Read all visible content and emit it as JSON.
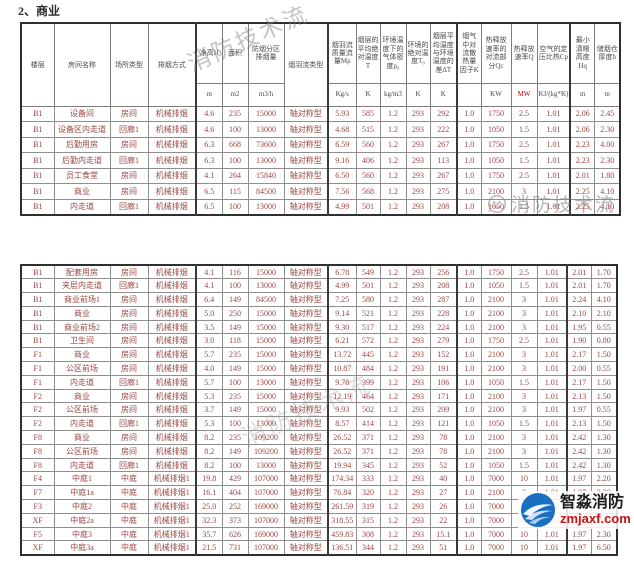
{
  "title": "2、商业",
  "colors": {
    "data_text": "#9a4742",
    "header_text": "#4a4a4a",
    "mw_unit_red": "#c00000",
    "logo_blue": "#1b6fc2",
    "logo_red": "#cc1111",
    "table_border": "#2f2f2f"
  },
  "watermarks": {
    "text": "消防技术流",
    "logo_name": "智淼消防",
    "logo_url": "zmjaxf.com"
  },
  "table": {
    "columns": [
      {
        "label": "楼层",
        "unit": null
      },
      {
        "label": "房间名称",
        "unit": null
      },
      {
        "label": "场所类型",
        "unit": null
      },
      {
        "label": "排烟方式",
        "unit": null
      },
      {
        "label": "净高H",
        "unit": "m"
      },
      {
        "label": "面积",
        "unit": "m2"
      },
      {
        "label": "防烟分区排烟量",
        "unit": "m3/h"
      },
      {
        "label": "烟羽流类型",
        "unit": null
      },
      {
        "label": "烟羽流质量流量Mρ",
        "unit": "Kg/s"
      },
      {
        "label": "烟层的平均绝对温度T",
        "unit": "K"
      },
      {
        "label": "环境温度下的气体密度ρ₀",
        "unit": "kg/m3"
      },
      {
        "label": "环境的绝对温度T₀",
        "unit": "K"
      },
      {
        "label": "烟层平均温度与环境温度的差ΔT",
        "unit": "K"
      },
      {
        "label": "烟气中对流散热量因子K",
        "unit": ""
      },
      {
        "label": "热释放速率的对流部分Qc",
        "unit": "KW"
      },
      {
        "label": "热释放速率Q",
        "unit": "MW"
      },
      {
        "label": "空气的定压比热Cp",
        "unit": "KJ/(kg*K)"
      },
      {
        "label": "最小清晰高度Hq",
        "unit": "m"
      },
      {
        "label": "储烟仓厚度h",
        "unit": "m"
      }
    ],
    "sections": {
      "top": [
        [
          "B1",
          "设备间",
          "房间",
          "机械排烟",
          "4.6",
          "235",
          "15000",
          "轴对称型",
          "5.93",
          "585",
          "1.2",
          "293",
          "292",
          "1.0",
          "1750",
          "2.5",
          "1.01",
          "2.06",
          "2.45"
        ],
        [
          "B1",
          "设备区内走道",
          "回廊1",
          "机械排烟",
          "4.6",
          "100",
          "13000",
          "轴对称型",
          "4.68",
          "515",
          "1.2",
          "293",
          "222",
          "1.0",
          "1050",
          "1.5",
          "1.01",
          "2.06",
          "2.30"
        ],
        [
          "B1",
          "后勤用房",
          "房间",
          "机械排烟",
          "6.3",
          "668",
          "73600",
          "轴对称型",
          "6.59",
          "560",
          "1.2",
          "293",
          "267",
          "1.0",
          "1750",
          "2.5",
          "1.01",
          "2.23",
          "4.00"
        ],
        [
          "B1",
          "后勤内走道",
          "回廊1",
          "机械排烟",
          "6.3",
          "100",
          "13000",
          "轴对称型",
          "9.16",
          "406",
          "1.2",
          "293",
          "113",
          "1.0",
          "1050",
          "1.5",
          "1.01",
          "2.23",
          "2.30"
        ],
        [
          "B1",
          "员工食堂",
          "房间",
          "机械排烟",
          "4.1",
          "264",
          "15840",
          "轴对称型",
          "6.50",
          "560",
          "1.2",
          "293",
          "267",
          "1.0",
          "1750",
          "2.5",
          "1.01",
          "2.01",
          "1.80"
        ],
        [
          "B1",
          "商业",
          "房间",
          "机械排烟",
          "6.5",
          "115",
          "84500",
          "轴对称型",
          "7.56",
          "568",
          "1.2",
          "293",
          "275",
          "1.0",
          "2100",
          "3",
          "1.01",
          "2.25",
          "4.10"
        ],
        [
          "B1",
          "内走道",
          "回廊1",
          "机械排烟",
          "6.5",
          "100",
          "13000",
          "轴对称型",
          "4.99",
          "501",
          "1.2",
          "293",
          "208",
          "1.0",
          "1050",
          "1.5",
          "1.01",
          "2.25",
          "4.10"
        ]
      ],
      "bottom": [
        [
          "B1",
          "配套用房",
          "房间",
          "机械排烟",
          "4.1",
          "116",
          "15000",
          "轴对称型",
          "6.78",
          "549",
          "1.2",
          "293",
          "256",
          "1.0",
          "1750",
          "2.5",
          "1.01",
          "2.01",
          "1.70"
        ],
        [
          "B1",
          "夹层内走道",
          "回廊1",
          "机械排烟",
          "4.1",
          "100",
          "13000",
          "轴对称型",
          "4.99",
          "501",
          "1.2",
          "293",
          "208",
          "1.0",
          "1050",
          "1.5",
          "1.01",
          "2.01",
          "1.70"
        ],
        [
          "B1",
          "商业前场1",
          "房间",
          "机械排烟",
          "6.4",
          "149",
          "84500",
          "轴对称型",
          "7.25",
          "580",
          "1.2",
          "293",
          "287",
          "1.0",
          "2100",
          "3",
          "1.01",
          "2.24",
          "4.10"
        ],
        [
          "B1",
          "商业",
          "房间",
          "机械排烟",
          "5.0",
          "250",
          "15000",
          "轴对称型",
          "9.14",
          "521",
          "1.2",
          "293",
          "228",
          "1.0",
          "2100",
          "3",
          "1.01",
          "2.10",
          "2.10"
        ],
        [
          "B1",
          "商业前场2",
          "房间",
          "机械排烟",
          "3.5",
          "149",
          "15000",
          "轴对称型",
          "9.30",
          "517",
          "1.2",
          "293",
          "224",
          "1.0",
          "2100",
          "3",
          "1.01",
          "1.95",
          "0.55"
        ],
        [
          "B1",
          "卫生间",
          "房间",
          "机械排烟",
          "3.0",
          "118",
          "15000",
          "轴对称型",
          "6.21",
          "572",
          "1.2",
          "293",
          "279",
          "1.0",
          "1750",
          "2.5",
          "1.01",
          "1.90",
          "0.80"
        ],
        [
          "F1",
          "商业",
          "房间",
          "机械排烟",
          "5.7",
          "235",
          "15000",
          "轴对称型",
          "13.72",
          "445",
          "1.2",
          "293",
          "152",
          "1.0",
          "2100",
          "3",
          "1.01",
          "2.17",
          "1.50"
        ],
        [
          "F1",
          "公区前场",
          "房间",
          "机械排烟",
          "4.0",
          "149",
          "15000",
          "轴对称型",
          "10.87",
          "484",
          "1.2",
          "293",
          "191",
          "1.0",
          "2100",
          "3",
          "1.01",
          "2.00",
          "0.55"
        ],
        [
          "F1",
          "内走道",
          "回廊1",
          "机械排烟",
          "5.7",
          "100",
          "13000",
          "轴对称型",
          "9.78",
          "399",
          "1.2",
          "293",
          "106",
          "1.0",
          "1050",
          "1.5",
          "1.01",
          "2.17",
          "1.50"
        ],
        [
          "F2",
          "商业",
          "房间",
          "机械排烟",
          "5.3",
          "235",
          "15000",
          "轴对称型",
          "12.19",
          "464",
          "1.2",
          "293",
          "171",
          "1.0",
          "2100",
          "3",
          "1.01",
          "2.13",
          "1.50"
        ],
        [
          "F2",
          "公区前场",
          "房间",
          "机械排烟",
          "3.7",
          "149",
          "15000",
          "轴对称型",
          "9.93",
          "502",
          "1.2",
          "293",
          "209",
          "1.0",
          "2100",
          "3",
          "1.01",
          "1.97",
          "0.55"
        ],
        [
          "F2",
          "内走道",
          "回廊1",
          "机械排烟",
          "5.3",
          "100",
          "13000",
          "轴对称型",
          "8.57",
          "414",
          "1.2",
          "293",
          "121",
          "1.0",
          "1050",
          "1.5",
          "1.01",
          "2.13",
          "1.50"
        ],
        [
          "F8",
          "商业",
          "房间",
          "机械排烟",
          "8.2",
          "235",
          "109200",
          "轴对称型",
          "26.52",
          "371",
          "1.2",
          "293",
          "78",
          "1.0",
          "2100",
          "3",
          "1.01",
          "2.42",
          "1.30"
        ],
        [
          "F8",
          "公区前场",
          "房间",
          "机械排烟",
          "8.2",
          "149",
          "109200",
          "轴对称型",
          "26.52",
          "371",
          "1.2",
          "293",
          "78",
          "1.0",
          "2100",
          "3",
          "1.01",
          "2.42",
          "1.30"
        ],
        [
          "F8",
          "内走道",
          "回廊1",
          "机械排烟",
          "8.2",
          "100",
          "13000",
          "轴对称型",
          "19.94",
          "345",
          "1.2",
          "293",
          "52",
          "1.0",
          "1050",
          "1.5",
          "1.01",
          "2.42",
          "1.30"
        ],
        [
          "F4",
          "中庭1",
          "中庭",
          "机械排烟1",
          "19.8",
          "429",
          "107000",
          "轴对称型",
          "174.34",
          "333",
          "1.2",
          "293",
          "40",
          "1.0",
          "7000",
          "10",
          "1.01",
          "1.97",
          "2.20"
        ],
        [
          "F7",
          "中庭1a",
          "中庭",
          "机械排烟1",
          "16.1",
          "404",
          "107000",
          "轴对称型",
          "76.84",
          "320",
          "1.2",
          "293",
          "27",
          "1.0",
          "2100",
          "3",
          "1.01",
          "1.97",
          "2.20"
        ],
        [
          "F3",
          "中庭2",
          "中庭",
          "机械排烟1",
          "25.0",
          "252",
          "169000",
          "轴对称型",
          "261.59",
          "319",
          "1.2",
          "293",
          "26",
          "1.0",
          "7000",
          "10",
          "1.01",
          "1.97",
          "2.20"
        ],
        [
          "XF",
          "中庭2a",
          "中庭",
          "机械排烟1",
          "32.3",
          "373",
          "107000",
          "轴对称型",
          "318.55",
          "315",
          "1.2",
          "293",
          "22",
          "1.0",
          "7000",
          "10",
          "1.01",
          "1.97",
          "2.20"
        ],
        [
          "F5",
          "中庭3",
          "中庭",
          "机械排烟1",
          "35.7",
          "626",
          "169000",
          "轴对称型",
          "459.83",
          "308",
          "1.2",
          "293",
          "15.1",
          "1.0",
          "7000",
          "10",
          "1.01",
          "1.97",
          "2.30"
        ],
        [
          "XF",
          "中庭3a",
          "中庭",
          "机械排烟1",
          "21.5",
          "731",
          "107000",
          "轴对称型",
          "136.51",
          "344",
          "1.2",
          "293",
          "51",
          "1.0",
          "7000",
          "10",
          "1.01",
          "1.97",
          "6.50"
        ]
      ]
    }
  }
}
